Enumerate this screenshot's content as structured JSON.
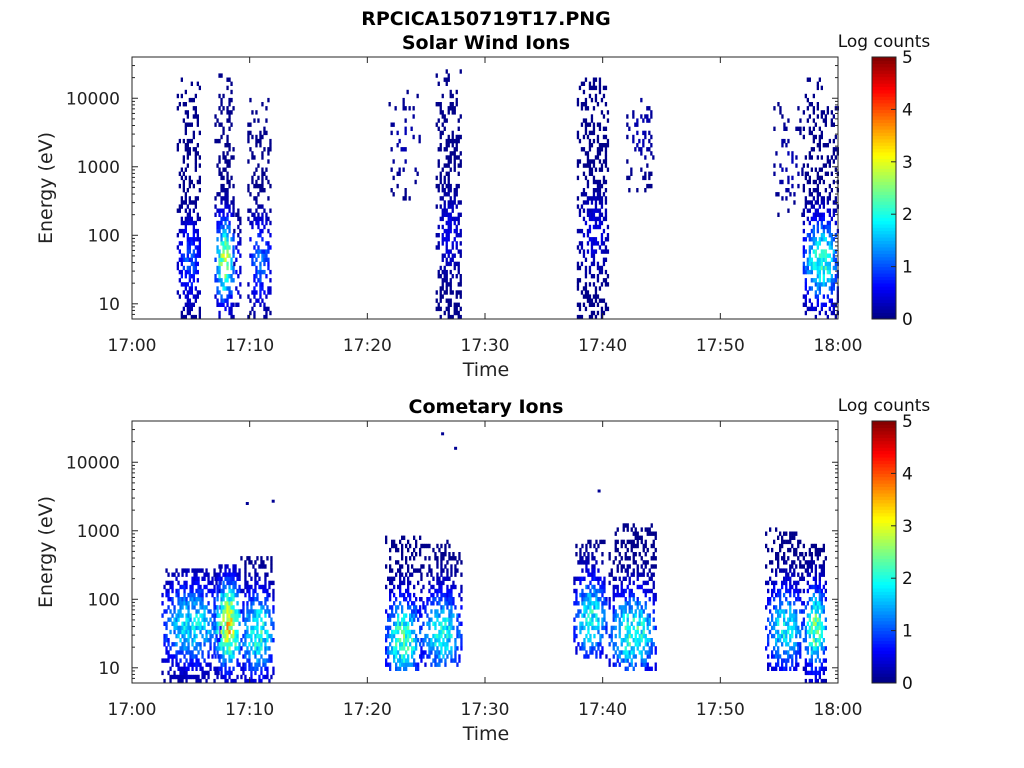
{
  "figure": {
    "title": "RPCICA150719T17.PNG"
  },
  "colors": {
    "colormap": [
      "#000080",
      "#0000ff",
      "#0080ff",
      "#00ffff",
      "#80ff80",
      "#ffff00",
      "#ff8000",
      "#ff0000",
      "#800000"
    ],
    "axis": "#262626"
  },
  "chart_data": [
    {
      "type": "heatmap",
      "title": "Solar Wind Ions",
      "xlabel": "Time",
      "ylabel": "Energy (eV)",
      "x_ticks": [
        "17:00",
        "17:10",
        "17:20",
        "17:30",
        "17:40",
        "17:50",
        "18:00"
      ],
      "xlim_minutes": [
        0,
        60
      ],
      "y_ticks": [
        "10",
        "100",
        "1000",
        "10000"
      ],
      "y_scale": "log",
      "ylim": [
        6,
        40000
      ],
      "colorbar": {
        "label": "Log counts",
        "ticks": [
          "0",
          "1",
          "2",
          "3",
          "4",
          "5"
        ],
        "range": [
          0,
          5
        ]
      },
      "bursts": [
        {
          "t0": 3.8,
          "t1": 5.8,
          "e_min": 6,
          "e_max": 20000,
          "peak": 1.2,
          "peak_e": 40,
          "density": 0.55
        },
        {
          "t0": 7.0,
          "t1": 8.6,
          "e_min": 6,
          "e_max": 30000,
          "peak": 3.2,
          "peak_e": 40,
          "density": 0.6
        },
        {
          "t0": 8.6,
          "t1": 9.2,
          "e_min": 7,
          "e_max": 300,
          "peak": 0.8,
          "peak_e": 30,
          "density": 0.3
        },
        {
          "t0": 9.8,
          "t1": 11.8,
          "e_min": 6,
          "e_max": 10000,
          "peak": 1.4,
          "peak_e": 40,
          "density": 0.45
        },
        {
          "t0": 21.8,
          "t1": 24.5,
          "e_min": 300,
          "e_max": 12000,
          "peak": 0.3,
          "peak_e": 2000,
          "density": 0.12
        },
        {
          "t0": 25.8,
          "t1": 28.0,
          "e_min": 6,
          "e_max": 25000,
          "peak": 0.6,
          "peak_e": 100,
          "density": 0.5
        },
        {
          "t0": 37.8,
          "t1": 40.5,
          "e_min": 6,
          "e_max": 20000,
          "peak": 0.6,
          "peak_e": 100,
          "density": 0.5
        },
        {
          "t0": 42.0,
          "t1": 44.3,
          "e_min": 400,
          "e_max": 10000,
          "peak": 0.3,
          "peak_e": 3000,
          "density": 0.22
        },
        {
          "t0": 54.5,
          "t1": 57.0,
          "e_min": 150,
          "e_max": 8000,
          "peak": 0.3,
          "peak_e": 1000,
          "density": 0.15
        },
        {
          "t0": 57.0,
          "t1": 60.0,
          "e_min": 6,
          "e_max": 20000,
          "peak": 2.6,
          "peak_e": 40,
          "density": 0.55
        }
      ]
    },
    {
      "type": "heatmap",
      "title": "Cometary Ions",
      "xlabel": "Time",
      "ylabel": "Energy (eV)",
      "x_ticks": [
        "17:00",
        "17:10",
        "17:20",
        "17:30",
        "17:40",
        "17:50",
        "18:00"
      ],
      "xlim_minutes": [
        0,
        60
      ],
      "y_ticks": [
        "10",
        "100",
        "1000",
        "10000"
      ],
      "y_scale": "log",
      "ylim": [
        6,
        40000
      ],
      "colorbar": {
        "label": "Log counts",
        "ticks": [
          "0",
          "1",
          "2",
          "3",
          "4",
          "5"
        ],
        "range": [
          0,
          5
        ]
      },
      "bursts": [
        {
          "t0": 2.5,
          "t1": 7.5,
          "e_min": 6,
          "e_max": 250,
          "peak": 2.2,
          "peak_e": 40,
          "density": 0.6
        },
        {
          "t0": 7.0,
          "t1": 9.2,
          "e_min": 6,
          "e_max": 300,
          "peak": 3.9,
          "peak_e": 40,
          "density": 0.7
        },
        {
          "t0": 9.2,
          "t1": 12.0,
          "e_min": 6,
          "e_max": 400,
          "peak": 2.6,
          "peak_e": 30,
          "density": 0.55
        },
        {
          "t0": 21.5,
          "t1": 24.5,
          "e_min": 8,
          "e_max": 800,
          "peak": 2.8,
          "peak_e": 25,
          "density": 0.55
        },
        {
          "t0": 24.5,
          "t1": 28.0,
          "e_min": 10,
          "e_max": 700,
          "peak": 2.4,
          "peak_e": 30,
          "density": 0.55
        },
        {
          "t0": 37.5,
          "t1": 40.3,
          "e_min": 12,
          "e_max": 700,
          "peak": 2.4,
          "peak_e": 50,
          "density": 0.55
        },
        {
          "t0": 40.5,
          "t1": 44.5,
          "e_min": 8,
          "e_max": 1200,
          "peak": 2.6,
          "peak_e": 30,
          "density": 0.55
        },
        {
          "t0": 53.8,
          "t1": 57.0,
          "e_min": 8,
          "e_max": 1000,
          "peak": 2.3,
          "peak_e": 35,
          "density": 0.55
        },
        {
          "t0": 57.0,
          "t1": 59.0,
          "e_min": 6,
          "e_max": 600,
          "peak": 2.9,
          "peak_e": 35,
          "density": 0.6
        }
      ],
      "isolated_points": [
        {
          "t": 26.4,
          "e": 26000
        },
        {
          "t": 27.5,
          "e": 16000
        },
        {
          "t": 9.8,
          "e": 2500
        },
        {
          "t": 12.0,
          "e": 2700
        },
        {
          "t": 39.7,
          "e": 3800
        }
      ]
    }
  ]
}
